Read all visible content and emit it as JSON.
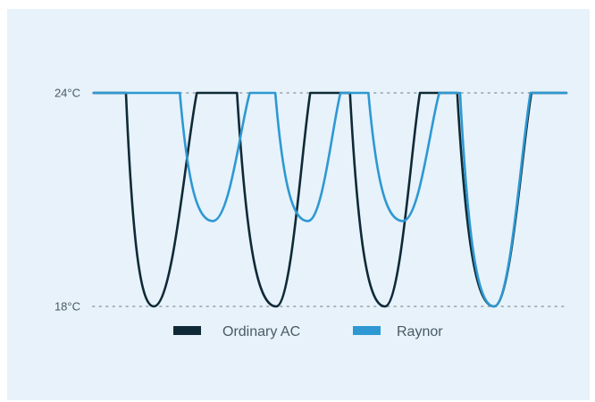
{
  "chart_data": {
    "type": "line",
    "y_unit": "°C",
    "ylim": [
      18,
      24
    ],
    "xlim": [
      0,
      100
    ],
    "yticks": [
      {
        "value": 24,
        "label": "24°C"
      },
      {
        "value": 18,
        "label": "18°C"
      }
    ],
    "grid": "dotted horizontal at ticks",
    "legend_position": "bottom-center",
    "series": [
      {
        "name": "Ordinary AC",
        "color": "#0f2a36",
        "points": [
          [
            0,
            24
          ],
          [
            6.8,
            24
          ],
          [
            12.7,
            18
          ],
          [
            21.8,
            24
          ],
          [
            30.3,
            24
          ],
          [
            38.6,
            18
          ],
          [
            45.8,
            24
          ],
          [
            54.2,
            24
          ],
          [
            61.6,
            18
          ],
          [
            69.0,
            24
          ],
          [
            76.9,
            24
          ],
          [
            84.7,
            18
          ],
          [
            92.6,
            24
          ],
          [
            100,
            24
          ]
        ]
      },
      {
        "name": "Raynor",
        "color": "#2e98d3",
        "points": [
          [
            0,
            24
          ],
          [
            18.2,
            24
          ],
          [
            25.2,
            20.4
          ],
          [
            33.0,
            24
          ],
          [
            38.4,
            24
          ],
          [
            45.3,
            20.4
          ],
          [
            52.2,
            24
          ],
          [
            58.1,
            24
          ],
          [
            65.4,
            20.4
          ],
          [
            73.1,
            24
          ],
          [
            77.5,
            24
          ],
          [
            84.7,
            18
          ],
          [
            92.4,
            24
          ],
          [
            100,
            24
          ]
        ]
      }
    ]
  }
}
